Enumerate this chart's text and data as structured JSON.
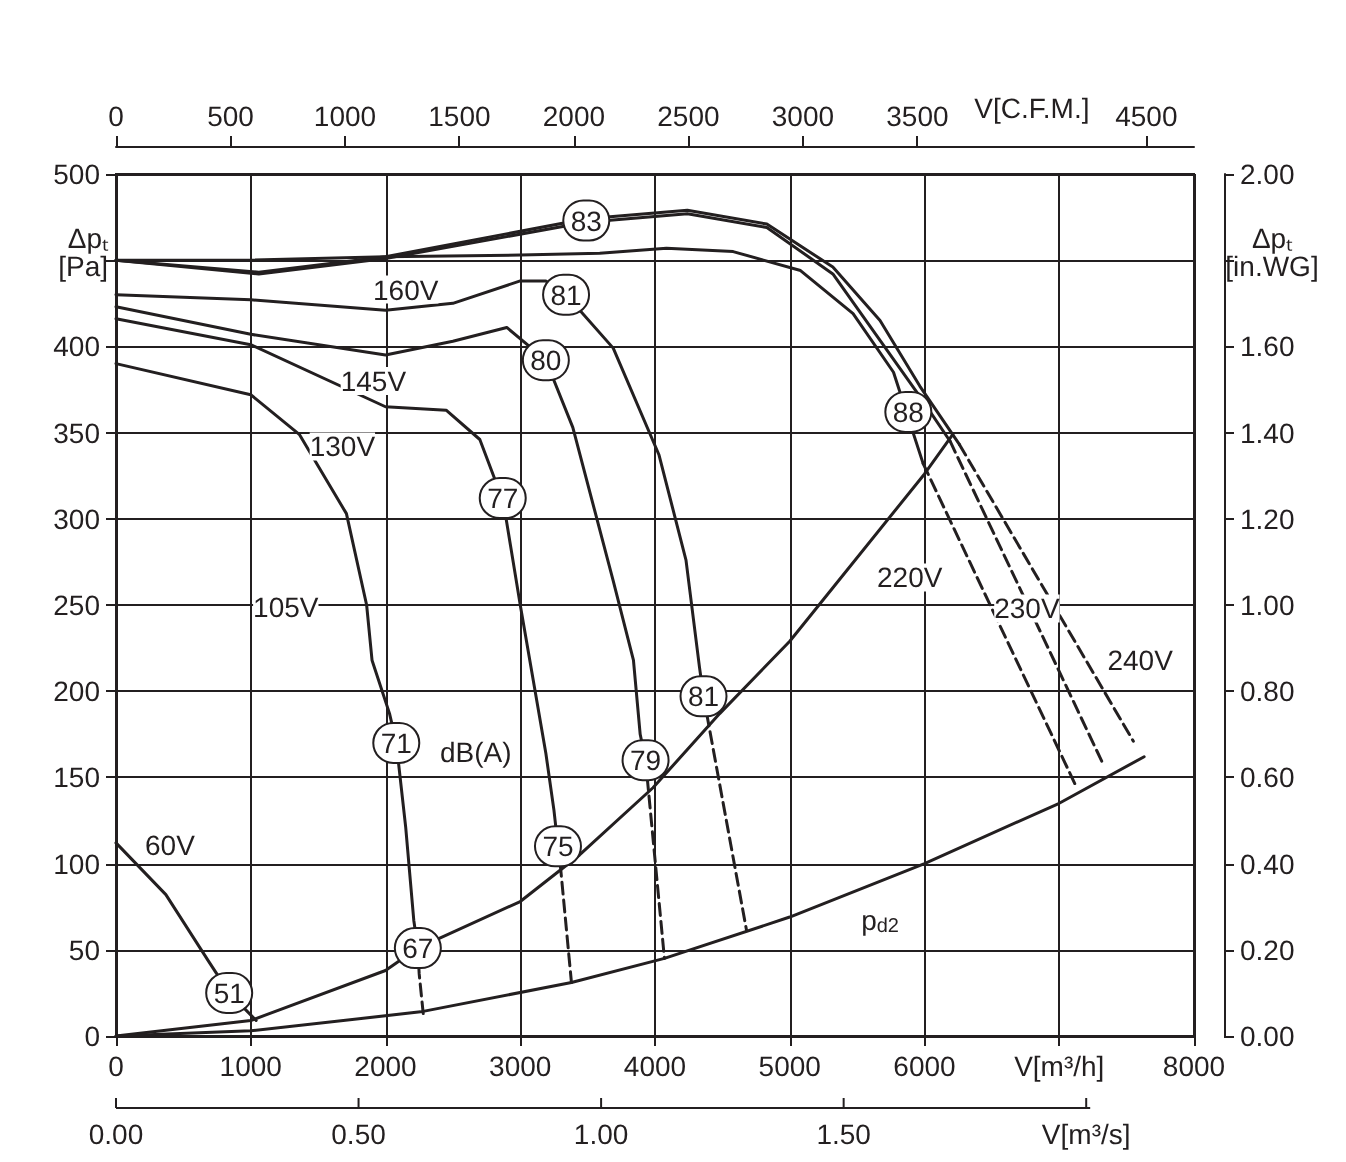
{
  "chart_data": {
    "type": "line",
    "xlabel": "V[m³/h]",
    "x2label": "V[C.F.M.]",
    "ylabel": "Δpₜ\n[Pa]",
    "y2label": "Δpₜ\n[in.WG]",
    "xlim": [
      0,
      8000
    ],
    "xticks": [
      0,
      1000,
      2000,
      3000,
      4000,
      5000,
      6000,
      {
        "value": 7000,
        "label": null
      },
      8000
    ],
    "x2lim": [
      0,
      4708
    ],
    "x2ticks": [
      0,
      500,
      1000,
      1500,
      2000,
      2500,
      3000,
      3500,
      4500
    ],
    "ylim": [
      0,
      500
    ],
    "yticks": [
      0,
      50,
      100,
      150,
      200,
      250,
      300,
      350,
      400,
      {
        "value": 450,
        "label": null
      },
      500
    ],
    "y2lim": [
      0,
      2
    ],
    "y2ticks": [
      {
        "value": 0,
        "label": "0.00"
      },
      {
        "value": 0.2,
        "label": "0.20"
      },
      {
        "value": 0.4,
        "label": "0.40"
      },
      {
        "value": 0.6,
        "label": "0.60"
      },
      {
        "value": 0.8,
        "label": "0.80"
      },
      {
        "value": 1,
        "label": "1.00"
      },
      {
        "value": 1.2,
        "label": "1.20"
      },
      {
        "value": 1.4,
        "label": "1.40"
      },
      {
        "value": 1.6,
        "label": "1.60"
      },
      {
        "value": 1.8,
        "label": null
      },
      {
        "value": 2,
        "label": "2.00"
      }
    ],
    "grid": true,
    "marker": "none",
    "series": [
      {
        "color": "#231f20",
        "line_style": "solid",
        "x": [
          0,
          370,
          690,
          840,
          1040
        ],
        "values": [
          112,
          82,
          43,
          25,
          9
        ]
      },
      {
        "color": "#231f20",
        "line_style": "solid",
        "x": [
          0,
          1000,
          1360,
          1710,
          1860,
          1900,
          2030,
          2080,
          2150,
          2210,
          2240
        ],
        "values": [
          390,
          372,
          349,
          303,
          250,
          218,
          187,
          170,
          121,
          67,
          51
        ]
      },
      {
        "color": "#231f20",
        "line_style": "dashed",
        "x": [
          2240,
          2250,
          2280
        ],
        "values": [
          51,
          36,
          13
        ]
      },
      {
        "color": "#231f20",
        "line_style": "solid",
        "x": [
          0,
          1000,
          2000,
          2450,
          2700,
          2850,
          2870,
          3000,
          3190,
          3250,
          3280
        ],
        "values": [
          416,
          401,
          365,
          363,
          346,
          315,
          312,
          250,
          164,
          131,
          110
        ]
      },
      {
        "color": "#231f20",
        "line_style": "dashed",
        "x": [
          3280,
          3300,
          3380
        ],
        "values": [
          110,
          97,
          31
        ]
      },
      {
        "color": "#231f20",
        "line_style": "solid",
        "x": [
          0,
          1000,
          2000,
          2500,
          2900,
          3190,
          3390,
          3690,
          3840,
          3890,
          3930
        ],
        "values": [
          423,
          407,
          395,
          403,
          411,
          392,
          353,
          264,
          218,
          175,
          160
        ]
      },
      {
        "color": "#231f20",
        "line_style": "dashed",
        "x": [
          3930,
          4070
        ],
        "values": [
          160,
          45
        ]
      },
      {
        "color": "#231f20",
        "line_style": "solid",
        "x": [
          0,
          1000,
          2000,
          2500,
          3000,
          3190,
          3340,
          3690,
          4030,
          4230,
          4330,
          4360
        ],
        "values": [
          430,
          427,
          421,
          425,
          438,
          438,
          430,
          399,
          337,
          276,
          214,
          197
        ]
      },
      {
        "color": "#231f20",
        "line_style": "dashed",
        "x": [
          4360,
          4680
        ],
        "values": [
          197,
          61
        ]
      },
      {
        "color": "#231f20",
        "line_style": "solid",
        "x": [
          0,
          1000,
          2000,
          3000,
          3590,
          4085,
          4580,
          5080,
          5470,
          5770,
          5990
        ],
        "values": [
          450,
          450,
          452,
          453,
          454,
          457,
          455,
          444,
          419,
          385,
          332
        ]
      },
      {
        "color": "#231f20",
        "line_style": "dashed",
        "x": [
          5990,
          7130
        ],
        "values": [
          332,
          144
        ]
      },
      {
        "color": "#231f20",
        "line_style": "solid",
        "x": [
          0,
          1060,
          2000,
          3490,
          4240,
          4830,
          5320,
          5965,
          6190
        ],
        "values": [
          450,
          442,
          451,
          472,
          477,
          469,
          442,
          371,
          345
        ]
      },
      {
        "color": "#231f20",
        "line_style": "dashed",
        "x": [
          6190,
          7330
        ],
        "values": [
          345,
          157
        ]
      },
      {
        "color": "#231f20",
        "line_style": "solid",
        "x": [
          0,
          1060,
          2000,
          3490,
          4240,
          4830,
          5320,
          5670,
          5965,
          6260
        ],
        "values": [
          450,
          443,
          452,
          474,
          479,
          471,
          446,
          415,
          377,
          343
        ]
      },
      {
        "color": "#231f20",
        "line_style": "dashed",
        "x": [
          6260,
          7550
        ],
        "values": [
          343,
          171
        ]
      },
      {
        "color": "#231f20",
        "line_style": "solid",
        "x": [
          0,
          1000,
          2000,
          2240,
          3000,
          3440,
          3985,
          4480,
          5000,
          5320,
          6000,
          6210
        ],
        "values": [
          0,
          9,
          38,
          51,
          78,
          105,
          144,
          187,
          229,
          260,
          326,
          349
        ]
      },
      {
        "color": "#231f20",
        "line_style": "solid",
        "x": [
          0,
          1000,
          2260,
          3380,
          4070,
          5000,
          6000,
          7000,
          7630
        ],
        "values": [
          0,
          3,
          14,
          31,
          45,
          69,
          100,
          135,
          162
        ]
      }
    ],
    "annotations": [
      {
        "text": "60V",
        "x": 400,
        "y": 111
      },
      {
        "text": "105V",
        "x": 1260,
        "y": 249
      },
      {
        "text": "130V",
        "x": 1680,
        "y": 342
      },
      {
        "text": "145V",
        "x": 1910,
        "y": 380
      },
      {
        "text": "160V",
        "x": 2150,
        "y": 433
      },
      {
        "text": "220V",
        "x": 5890,
        "y": 266
      },
      {
        "text": "230V",
        "x": 6760,
        "y": 248
      },
      {
        "text": "240V",
        "x": 7600,
        "y": 218
      },
      {
        "text": "p$_{d2}$",
        "x": 5670,
        "y": 67
      },
      {
        "text": "dB(A)",
        "x": 2670,
        "y": 165
      },
      {
        "text": "51",
        "x": 840,
        "y": 25
      },
      {
        "text": "67",
        "x": 2240,
        "y": 51
      },
      {
        "text": "71",
        "x": 2080,
        "y": 170
      },
      {
        "text": "75",
        "x": 3280,
        "y": 110
      },
      {
        "text": "77",
        "x": 2870,
        "y": 312
      },
      {
        "text": "79",
        "x": 3930,
        "y": 160
      },
      {
        "text": "80",
        "x": 3190,
        "y": 392
      },
      {
        "text": "81",
        "x": 3340,
        "y": 430
      },
      {
        "text": "81",
        "x": 4360,
        "y": 197
      },
      {
        "text": "83",
        "x": 3490,
        "y": 473
      },
      {
        "text": "88",
        "x": 5880,
        "y": 362
      },
      "0.00",
      "0.50",
      "1.00",
      "1.50",
      "V[m³/s]"
    ]
  }
}
